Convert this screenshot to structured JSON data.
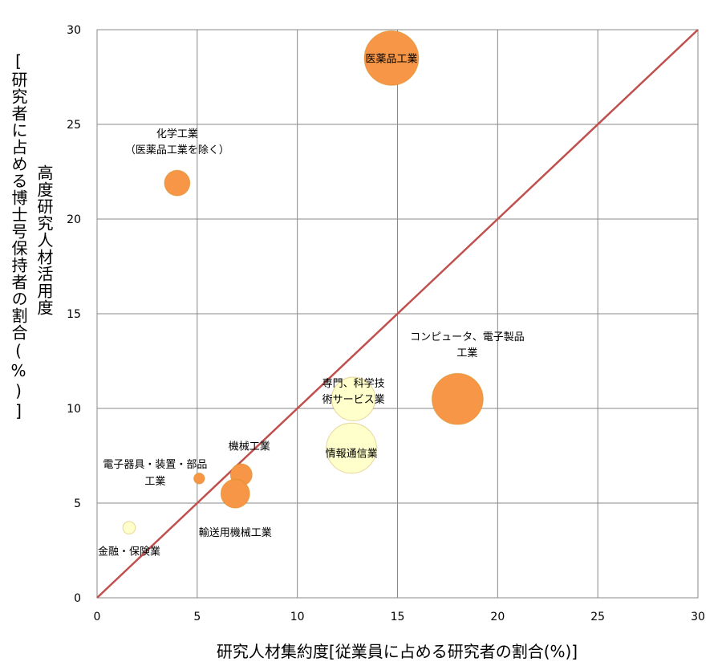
{
  "chart_data": {
    "type": "scatter",
    "xlabel": "研究人材集約度[従業員に占める研究者の割合(%)]",
    "ylabel_lines": [
      "高度研究人材活用度",
      "[研究者に占める博士号保持者の割合(%)]"
    ],
    "xlim": [
      0,
      30
    ],
    "ylim": [
      0,
      30
    ],
    "x_ticks": [
      "0",
      "5",
      "10",
      "15",
      "20",
      "25",
      "30"
    ],
    "y_ticks": [
      "0",
      "5",
      "10",
      "15",
      "20",
      "25",
      "30"
    ],
    "grid": true,
    "diagonal_line": {
      "x": [
        0,
        30
      ],
      "y": [
        0,
        30
      ],
      "color": "#c0504d"
    },
    "colors": {
      "orange": "#f79646",
      "cream": "#ffffcc"
    },
    "points": [
      {
        "label": [
          "医薬品工業"
        ],
        "x": 14.7,
        "y": 28.5,
        "size": 1.0,
        "color": "orange"
      },
      {
        "label": [
          "化学工業",
          "（医薬品工業を除く）"
        ],
        "x": 4.0,
        "y": 21.9,
        "size": 0.47,
        "color": "orange"
      },
      {
        "label": [
          "コンピュータ、電子製品",
          "工業"
        ],
        "x": 18.0,
        "y": 10.5,
        "size": 0.94,
        "color": "orange"
      },
      {
        "label": [
          "専門、科学技",
          "術サービス業"
        ],
        "x": 12.8,
        "y": 10.5,
        "size": 0.8,
        "color": "cream"
      },
      {
        "label": [
          "情報通信業"
        ],
        "x": 12.7,
        "y": 7.9,
        "size": 0.92,
        "color": "cream"
      },
      {
        "label": [
          "機械工業"
        ],
        "x": 7.2,
        "y": 6.5,
        "size": 0.4,
        "color": "orange"
      },
      {
        "label": [
          "電子器具・装置・部品",
          "工業"
        ],
        "x": 5.1,
        "y": 6.3,
        "size": 0.2,
        "color": "orange"
      },
      {
        "label": [
          "輸送用機械工業"
        ],
        "x": 6.9,
        "y": 5.5,
        "size": 0.53,
        "color": "orange"
      },
      {
        "label": [
          "金融・保険業"
        ],
        "x": 1.6,
        "y": 3.7,
        "size": 0.23,
        "color": "cream"
      }
    ]
  }
}
